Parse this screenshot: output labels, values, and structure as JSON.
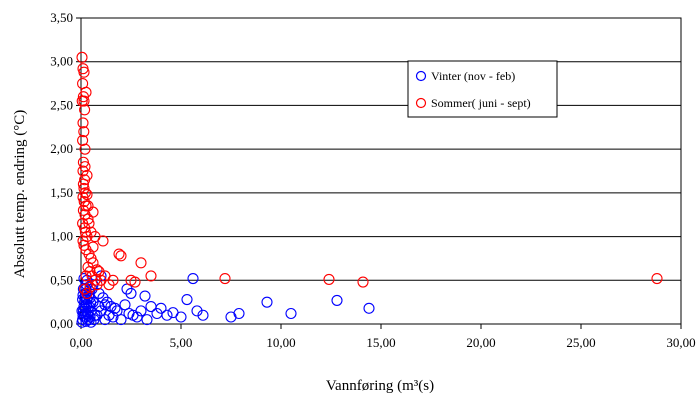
{
  "chart_data": {
    "type": "scatter",
    "title": "",
    "xlabel": "Vannføring (m³(s)",
    "ylabel": "Absolutt temp. endring (°C)",
    "xlim": [
      0,
      30
    ],
    "ylim": [
      0,
      3.5
    ],
    "xticks": [
      "0,00",
      "5,00",
      "10,00",
      "15,00",
      "20,00",
      "25,00",
      "30,00"
    ],
    "yticks": [
      "0,00",
      "0,50",
      "1,00",
      "1,50",
      "2,00",
      "2,50",
      "3,00",
      "3,50"
    ],
    "grid": "horizontal major",
    "legend_position": "top-right",
    "marker": "hollow circle",
    "series": [
      {
        "name": "Vinter (nov - feb)",
        "color": "#0000ff",
        "points": [
          [
            0.05,
            0.02
          ],
          [
            0.08,
            0.05
          ],
          [
            0.1,
            0.1
          ],
          [
            0.12,
            0.15
          ],
          [
            0.15,
            0.2
          ],
          [
            0.18,
            0.25
          ],
          [
            0.2,
            0.3
          ],
          [
            0.22,
            0.35
          ],
          [
            0.25,
            0.4
          ],
          [
            0.28,
            0.45
          ],
          [
            0.3,
            0.5
          ],
          [
            0.32,
            0.05
          ],
          [
            0.35,
            0.1
          ],
          [
            0.4,
            0.2
          ],
          [
            0.45,
            0.3
          ],
          [
            0.5,
            0.15
          ],
          [
            0.55,
            0.4
          ],
          [
            0.6,
            0.25
          ],
          [
            0.65,
            0.05
          ],
          [
            0.7,
            0.1
          ],
          [
            0.15,
            0.52
          ],
          [
            0.25,
            0.03
          ],
          [
            0.35,
            0.18
          ],
          [
            0.45,
            0.08
          ],
          [
            0.2,
            0.12
          ],
          [
            0.3,
            0.28
          ],
          [
            0.4,
            0.38
          ],
          [
            0.5,
            0.02
          ],
          [
            0.6,
            0.45
          ],
          [
            0.1,
            0.33
          ],
          [
            0.8,
            0.1
          ],
          [
            0.9,
            0.2
          ],
          [
            1.0,
            0.15
          ],
          [
            1.1,
            0.3
          ],
          [
            1.2,
            0.05
          ],
          [
            1.3,
            0.25
          ],
          [
            1.4,
            0.1
          ],
          [
            1.5,
            0.2
          ],
          [
            1.6,
            0.08
          ],
          [
            1.8,
            0.15
          ],
          [
            2.0,
            0.05
          ],
          [
            2.2,
            0.22
          ],
          [
            2.4,
            0.12
          ],
          [
            2.6,
            0.1
          ],
          [
            2.8,
            0.08
          ],
          [
            3.0,
            0.15
          ],
          [
            3.2,
            0.32
          ],
          [
            3.5,
            0.2
          ],
          [
            3.8,
            0.12
          ],
          [
            4.0,
            0.18
          ],
          [
            4.3,
            0.1
          ],
          [
            4.6,
            0.13
          ],
          [
            5.0,
            0.08
          ],
          [
            5.3,
            0.28
          ],
          [
            5.6,
            0.52
          ],
          [
            5.8,
            0.15
          ],
          [
            6.1,
            0.1
          ],
          [
            7.5,
            0.08
          ],
          [
            7.9,
            0.12
          ],
          [
            9.3,
            0.25
          ],
          [
            10.5,
            0.12
          ],
          [
            12.8,
            0.27
          ],
          [
            14.4,
            0.18
          ],
          [
            1.0,
            0.55
          ],
          [
            1.2,
            0.22
          ],
          [
            0.9,
            0.35
          ],
          [
            2.3,
            0.4
          ],
          [
            1.7,
            0.18
          ],
          [
            2.5,
            0.35
          ],
          [
            3.3,
            0.05
          ],
          [
            0.05,
            0.15
          ],
          [
            0.08,
            0.28
          ],
          [
            0.12,
            0.4
          ],
          [
            0.18,
            0.08
          ],
          [
            0.22,
            0.18
          ],
          [
            0.28,
            0.22
          ],
          [
            0.32,
            0.12
          ],
          [
            0.38,
            0.32
          ],
          [
            0.42,
            0.05
          ],
          [
            0.48,
            0.24
          ]
        ]
      },
      {
        "name": "Sommer( juni - sept)",
        "color": "#ff0000",
        "points": [
          [
            0.05,
            3.05
          ],
          [
            0.1,
            2.92
          ],
          [
            0.15,
            2.88
          ],
          [
            0.08,
            2.75
          ],
          [
            0.12,
            2.6
          ],
          [
            0.06,
            2.55
          ],
          [
            0.18,
            2.45
          ],
          [
            0.1,
            2.3
          ],
          [
            0.14,
            2.2
          ],
          [
            0.08,
            2.1
          ],
          [
            0.2,
            2.0
          ],
          [
            0.12,
            1.85
          ],
          [
            0.1,
            1.75
          ],
          [
            0.18,
            1.65
          ],
          [
            0.15,
            1.55
          ],
          [
            0.22,
            1.5
          ],
          [
            0.3,
            1.48
          ],
          [
            0.1,
            1.45
          ],
          [
            0.16,
            1.4
          ],
          [
            0.25,
            1.35
          ],
          [
            0.12,
            1.3
          ],
          [
            0.2,
            1.25
          ],
          [
            0.35,
            1.2
          ],
          [
            0.08,
            1.15
          ],
          [
            0.18,
            1.1
          ],
          [
            0.22,
            1.05
          ],
          [
            0.3,
            1.0
          ],
          [
            0.1,
            0.95
          ],
          [
            0.15,
            0.9
          ],
          [
            0.25,
            0.85
          ],
          [
            0.4,
            0.8
          ],
          [
            0.5,
            0.75
          ],
          [
            0.6,
            0.7
          ],
          [
            0.35,
            0.65
          ],
          [
            0.45,
            0.6
          ],
          [
            0.55,
            0.55
          ],
          [
            0.7,
            0.5
          ],
          [
            0.8,
            0.45
          ],
          [
            0.9,
            0.6
          ],
          [
            1.0,
            0.5
          ],
          [
            1.2,
            0.55
          ],
          [
            1.1,
            0.95
          ],
          [
            0.6,
            1.28
          ],
          [
            0.7,
            1.0
          ],
          [
            0.5,
            1.05
          ],
          [
            0.4,
            1.15
          ],
          [
            0.3,
            1.7
          ],
          [
            0.2,
            1.8
          ],
          [
            0.15,
            2.55
          ],
          [
            0.25,
            2.65
          ],
          [
            1.9,
            0.8
          ],
          [
            2.0,
            0.78
          ],
          [
            2.5,
            0.5
          ],
          [
            2.7,
            0.48
          ],
          [
            3.0,
            0.7
          ],
          [
            3.5,
            0.55
          ],
          [
            7.2,
            0.52
          ],
          [
            12.4,
            0.51
          ],
          [
            14.1,
            0.48
          ],
          [
            28.8,
            0.52
          ],
          [
            0.3,
            0.35
          ],
          [
            0.25,
            0.55
          ],
          [
            0.18,
            0.4
          ],
          [
            0.45,
            0.42
          ],
          [
            0.6,
            0.88
          ],
          [
            0.8,
            0.62
          ],
          [
            1.4,
            0.45
          ],
          [
            1.6,
            0.5
          ],
          [
            0.35,
            1.35
          ],
          [
            0.12,
            1.6
          ]
        ]
      }
    ]
  }
}
